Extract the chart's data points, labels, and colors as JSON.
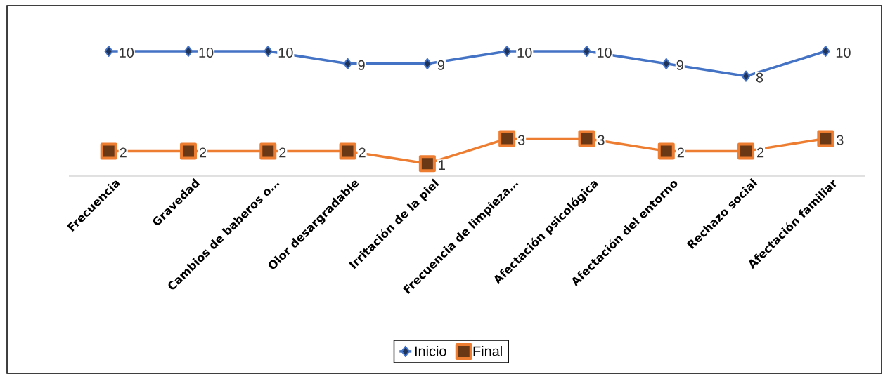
{
  "chart_data": {
    "type": "line",
    "categories": [
      "Frecuencia",
      "Gravedad",
      "Cambios de baberos o…",
      "Olor desargradable",
      "Irritación de la piel",
      "Frecuencia de limpieza…",
      "Afectación psicológica",
      "Afectación del entorno",
      "Rechazo social",
      "Afectación familiar"
    ],
    "series": [
      {
        "name": "Inicio",
        "color": "#4472c4",
        "marker": "diamond",
        "values": [
          10,
          10,
          10,
          9,
          9,
          10,
          10,
          9,
          8,
          10
        ]
      },
      {
        "name": "Final",
        "color": "#ed7d31",
        "marker": "square",
        "values": [
          2,
          2,
          2,
          2,
          1,
          3,
          3,
          2,
          2,
          3
        ]
      }
    ],
    "data_labels": true,
    "legend": "bottom",
    "grid": false
  }
}
